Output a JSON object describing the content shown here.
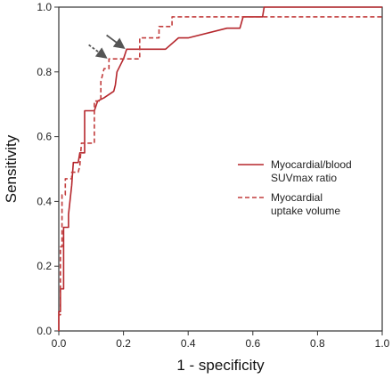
{
  "chart_data": {
    "type": "line",
    "xlabel": "1 - specificity",
    "ylabel": "Sensitivity",
    "xlim": [
      0,
      1
    ],
    "ylim": [
      0,
      1
    ],
    "x_ticks": [
      "0.0",
      "0.2",
      "0.4",
      "0.6",
      "0.8",
      "1.0"
    ],
    "y_ticks": [
      "0.0",
      "0.2",
      "0.4",
      "0.6",
      "0.8",
      "1.0"
    ],
    "grid": false,
    "legend_position": "right",
    "series": [
      {
        "name_lines": [
          "Myocardial/blood",
          "SUVmax ratio"
        ],
        "style": "solid",
        "color": "#b5262c",
        "points": [
          [
            0.0,
            0.0
          ],
          [
            0.0,
            0.06
          ],
          [
            0.005,
            0.06
          ],
          [
            0.005,
            0.13
          ],
          [
            0.015,
            0.13
          ],
          [
            0.015,
            0.32
          ],
          [
            0.03,
            0.32
          ],
          [
            0.03,
            0.36
          ],
          [
            0.04,
            0.45
          ],
          [
            0.045,
            0.52
          ],
          [
            0.06,
            0.52
          ],
          [
            0.065,
            0.55
          ],
          [
            0.08,
            0.55
          ],
          [
            0.08,
            0.68
          ],
          [
            0.11,
            0.68
          ],
          [
            0.12,
            0.71
          ],
          [
            0.14,
            0.72
          ],
          [
            0.17,
            0.74
          ],
          [
            0.175,
            0.76
          ],
          [
            0.18,
            0.8
          ],
          [
            0.2,
            0.84
          ],
          [
            0.21,
            0.87
          ],
          [
            0.33,
            0.87
          ],
          [
            0.37,
            0.905
          ],
          [
            0.4,
            0.905
          ],
          [
            0.52,
            0.935
          ],
          [
            0.56,
            0.935
          ],
          [
            0.57,
            0.97
          ],
          [
            0.63,
            0.97
          ],
          [
            0.635,
            1.0
          ],
          [
            1.0,
            1.0
          ]
        ]
      },
      {
        "name_lines": [
          "Myocardial",
          "uptake volume"
        ],
        "style": "dashed",
        "color": "#c23d3d",
        "points": [
          [
            0.0,
            0.0
          ],
          [
            0.0,
            0.05
          ],
          [
            0.005,
            0.05
          ],
          [
            0.005,
            0.26
          ],
          [
            0.01,
            0.26
          ],
          [
            0.01,
            0.42
          ],
          [
            0.02,
            0.42
          ],
          [
            0.02,
            0.47
          ],
          [
            0.04,
            0.47
          ],
          [
            0.04,
            0.49
          ],
          [
            0.06,
            0.49
          ],
          [
            0.065,
            0.51
          ],
          [
            0.07,
            0.58
          ],
          [
            0.11,
            0.58
          ],
          [
            0.11,
            0.71
          ],
          [
            0.13,
            0.71
          ],
          [
            0.13,
            0.77
          ],
          [
            0.14,
            0.81
          ],
          [
            0.155,
            0.81
          ],
          [
            0.155,
            0.84
          ],
          [
            0.25,
            0.84
          ],
          [
            0.25,
            0.905
          ],
          [
            0.31,
            0.905
          ],
          [
            0.31,
            0.94
          ],
          [
            0.35,
            0.94
          ],
          [
            0.35,
            0.97
          ],
          [
            1.0,
            0.97
          ]
        ]
      }
    ],
    "annotations": [
      {
        "type": "arrow",
        "style": "solid",
        "tip": [
          0.2,
          0.875
        ]
      },
      {
        "type": "arrow",
        "style": "dashed",
        "tip": [
          0.145,
          0.845
        ]
      }
    ]
  }
}
